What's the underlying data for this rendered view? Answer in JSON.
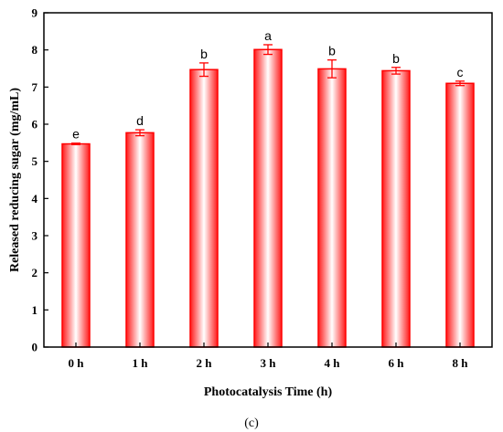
{
  "chart_data": {
    "type": "bar",
    "categories": [
      "0 h",
      "1 h",
      "2 h",
      "3 h",
      "4 h",
      "6 h",
      "8 h"
    ],
    "values": [
      5.47,
      5.77,
      7.47,
      8.01,
      7.49,
      7.44,
      7.1
    ],
    "errors": [
      0.02,
      0.08,
      0.18,
      0.13,
      0.24,
      0.09,
      0.06
    ],
    "significance": [
      "e",
      "d",
      "b",
      "a",
      "b",
      "b",
      "c"
    ],
    "xlabel": "Photocatalysis Time (h)",
    "ylabel": "Released reducing sugar (mg/mL)",
    "ylim": [
      0,
      9
    ],
    "yticks": [
      0,
      1,
      2,
      3,
      4,
      5,
      6,
      7,
      8,
      9
    ],
    "panel_label": "(c)",
    "grid": false,
    "legend": "none",
    "bar_color": "#ff0000",
    "bar_fill": "gradient red-white-red"
  }
}
